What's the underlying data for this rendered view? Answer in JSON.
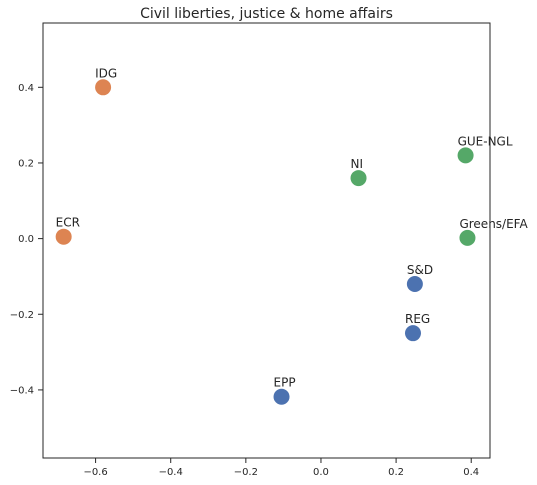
{
  "chart_data": {
    "type": "scatter",
    "title": "Civil liberties, justice & home affairs",
    "xlabel": "",
    "ylabel": "",
    "xlim": [
      -0.74,
      0.45
    ],
    "ylim": [
      -0.58,
      0.57
    ],
    "xticks": [
      -0.6,
      -0.4,
      -0.2,
      0.0,
      0.2,
      0.4
    ],
    "xtick_labels": [
      "−0.6",
      "−0.4",
      "−0.2",
      "0.0",
      "0.2",
      "0.4"
    ],
    "yticks": [
      -0.4,
      -0.2,
      0.0,
      0.2,
      0.4
    ],
    "ytick_labels": [
      "−0.4",
      "−0.2",
      "0.0",
      "0.2",
      "0.4"
    ],
    "grid": false,
    "colors": {
      "blue": "#4c72b0",
      "orange": "#dd8452",
      "green": "#55a868"
    },
    "points": [
      {
        "label": "IDG",
        "x": -0.58,
        "y": 0.4,
        "color": "#dd8452"
      },
      {
        "label": "ECR",
        "x": -0.685,
        "y": 0.005,
        "color": "#dd8452"
      },
      {
        "label": "NI",
        "x": 0.1,
        "y": 0.16,
        "color": "#55a868"
      },
      {
        "label": "GUE-NGL",
        "x": 0.385,
        "y": 0.22,
        "color": "#55a868"
      },
      {
        "label": "Greens/EFA",
        "x": 0.39,
        "y": 0.002,
        "color": "#55a868"
      },
      {
        "label": "S&D",
        "x": 0.25,
        "y": -0.12,
        "color": "#4c72b0"
      },
      {
        "label": "REG",
        "x": 0.245,
        "y": -0.25,
        "color": "#4c72b0"
      },
      {
        "label": "EPP",
        "x": -0.105,
        "y": -0.418,
        "color": "#4c72b0"
      }
    ]
  }
}
